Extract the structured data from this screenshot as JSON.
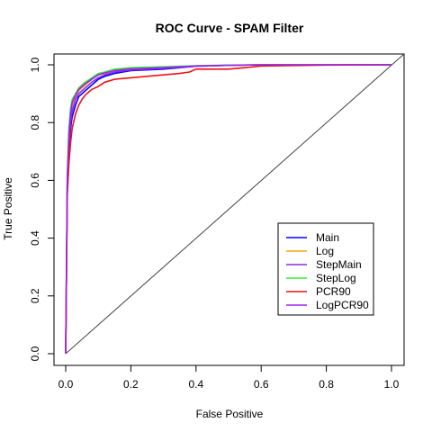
{
  "chart_data": {
    "type": "line",
    "title": "ROC Curve - SPAM Filter",
    "xlabel": "False Positive",
    "ylabel": "True Positive",
    "xlim": [
      0,
      1
    ],
    "ylim": [
      0,
      1
    ],
    "xticks": [
      "0.0",
      "0.2",
      "0.4",
      "0.6",
      "0.8",
      "1.0"
    ],
    "yticks": [
      "0.0",
      "0.2",
      "0.4",
      "0.6",
      "0.8",
      "1.0"
    ],
    "legend_position": "right",
    "reference_line": {
      "x": [
        0,
        1
      ],
      "y": [
        0,
        1
      ],
      "color": "#444444"
    },
    "series": [
      {
        "name": "Main",
        "color": "#0000ff",
        "x": [
          0,
          0.005,
          0.01,
          0.015,
          0.02,
          0.03,
          0.04,
          0.05,
          0.06,
          0.08,
          0.1,
          0.12,
          0.15,
          0.2,
          0.3,
          0.4,
          0.5,
          0.6,
          0.8,
          1.0
        ],
        "y": [
          0,
          0.58,
          0.7,
          0.78,
          0.82,
          0.86,
          0.89,
          0.9,
          0.91,
          0.93,
          0.95,
          0.96,
          0.97,
          0.98,
          0.985,
          0.995,
          0.998,
          1.0,
          1.0,
          1.0
        ]
      },
      {
        "name": "Log",
        "color": "#ffa500",
        "x": [
          0,
          0.005,
          0.01,
          0.015,
          0.02,
          0.03,
          0.04,
          0.05,
          0.06,
          0.08,
          0.1,
          0.12,
          0.15,
          0.2,
          0.3,
          0.4,
          0.5,
          0.6,
          0.8,
          1.0
        ],
        "y": [
          0,
          0.6,
          0.75,
          0.82,
          0.86,
          0.89,
          0.91,
          0.92,
          0.93,
          0.95,
          0.965,
          0.97,
          0.98,
          0.985,
          0.99,
          0.996,
          0.998,
          1.0,
          1.0,
          1.0
        ]
      },
      {
        "name": "StepMain",
        "color": "#8a2be2",
        "x": [
          0,
          0.005,
          0.01,
          0.015,
          0.02,
          0.03,
          0.04,
          0.05,
          0.06,
          0.08,
          0.1,
          0.12,
          0.15,
          0.2,
          0.3,
          0.4,
          0.5,
          0.6,
          0.8,
          1.0
        ],
        "y": [
          0,
          0.6,
          0.72,
          0.8,
          0.84,
          0.88,
          0.9,
          0.91,
          0.92,
          0.94,
          0.955,
          0.965,
          0.975,
          0.982,
          0.988,
          0.995,
          0.998,
          1.0,
          1.0,
          1.0
        ]
      },
      {
        "name": "StepLog",
        "color": "#33ee33",
        "x": [
          0,
          0.005,
          0.01,
          0.015,
          0.02,
          0.03,
          0.04,
          0.05,
          0.06,
          0.08,
          0.1,
          0.12,
          0.15,
          0.2,
          0.3,
          0.4,
          0.5,
          0.6,
          0.8,
          1.0
        ],
        "y": [
          0,
          0.62,
          0.78,
          0.85,
          0.88,
          0.9,
          0.92,
          0.93,
          0.94,
          0.955,
          0.97,
          0.975,
          0.985,
          0.99,
          0.993,
          0.997,
          0.999,
          1.0,
          1.0,
          1.0
        ]
      },
      {
        "name": "PCR90",
        "color": "#ee1111",
        "x": [
          0,
          0.005,
          0.01,
          0.015,
          0.02,
          0.03,
          0.04,
          0.05,
          0.06,
          0.07,
          0.08,
          0.1,
          0.12,
          0.15,
          0.2,
          0.25,
          0.3,
          0.35,
          0.38,
          0.4,
          0.5,
          0.55,
          0.6,
          0.8,
          1.0
        ],
        "y": [
          0,
          0.55,
          0.66,
          0.73,
          0.78,
          0.83,
          0.86,
          0.88,
          0.895,
          0.905,
          0.915,
          0.925,
          0.94,
          0.95,
          0.955,
          0.96,
          0.965,
          0.97,
          0.975,
          0.985,
          0.985,
          0.99,
          0.996,
          0.999,
          1.0
        ]
      },
      {
        "name": "LogPCR90",
        "color": "#a020f0",
        "x": [
          0,
          0.005,
          0.01,
          0.015,
          0.02,
          0.03,
          0.04,
          0.05,
          0.06,
          0.08,
          0.1,
          0.12,
          0.15,
          0.2,
          0.3,
          0.4,
          0.5,
          0.6,
          0.8,
          1.0
        ],
        "y": [
          0,
          0.61,
          0.76,
          0.83,
          0.87,
          0.895,
          0.915,
          0.925,
          0.935,
          0.95,
          0.965,
          0.972,
          0.98,
          0.986,
          0.99,
          0.996,
          0.998,
          1.0,
          1.0,
          1.0
        ]
      }
    ]
  }
}
